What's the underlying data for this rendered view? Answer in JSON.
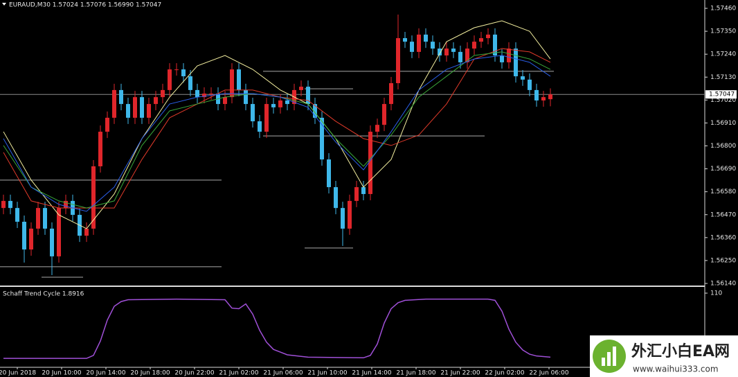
{
  "chart_data": {
    "type": "candlestick",
    "title": "EURAUD,M30  1.57024 1.57076 1.56990 1.57047",
    "up_color": "#e0262b",
    "down_color": "#3fb8ea",
    "grid": false,
    "ylim": [
      1.5613,
      1.575
    ],
    "yticks": [
      {
        "value": 1.5746,
        "label": "1.57460"
      },
      {
        "value": 1.5735,
        "label": "1.57350"
      },
      {
        "value": 1.5724,
        "label": "1.57240"
      },
      {
        "value": 1.5713,
        "label": "1.57130"
      },
      {
        "value": 1.5702,
        "label": "1.57020"
      },
      {
        "value": 1.5691,
        "label": "1.56910"
      },
      {
        "value": 1.568,
        "label": "1.56800"
      },
      {
        "value": 1.5669,
        "label": "1.56690"
      },
      {
        "value": 1.5658,
        "label": "1.56580"
      },
      {
        "value": 1.5647,
        "label": "1.56470"
      },
      {
        "value": 1.5636,
        "label": "1.56360"
      },
      {
        "value": 1.5625,
        "label": "1.56250"
      },
      {
        "value": 1.5614,
        "label": "1.56140"
      }
    ],
    "last_price": 1.57047,
    "time_labels": [
      "20 Jun 2018",
      "20 Jun 10:00",
      "20 Jun 14:00",
      "20 Jun 18:00",
      "20 Jun 22:00",
      "21 Jun 02:00",
      "21 Jun 06:00",
      "21 Jun 10:00",
      "21 Jun 14:00",
      "21 Jun 18:00",
      "21 Jun 22:00",
      "22 Jun 02:00",
      "22 Jun 06:00"
    ],
    "open": [
      1.56502,
      1.56536,
      1.56502,
      1.56436,
      1.56303,
      1.56403,
      1.56502,
      1.56403,
      1.5627,
      1.56502,
      1.56536,
      1.56469,
      1.56369,
      1.56403,
      1.56702,
      1.56868,
      1.56935,
      1.57068,
      1.57001,
      1.56935,
      1.57034,
      1.56935,
      1.57001,
      1.57034,
      1.57068,
      1.57167,
      1.57167,
      1.57134,
      1.57068,
      1.57034,
      1.57051,
      1.57051,
      1.57001,
      1.57034,
      1.57167,
      1.57068,
      1.57001,
      1.56918,
      1.56868,
      1.57001,
      1.56985,
      1.57018,
      1.57001,
      1.57068,
      1.57084,
      1.57001,
      1.56935,
      1.56735,
      1.56602,
      1.56502,
      1.56403,
      1.56536,
      1.56602,
      1.56569,
      1.56868,
      1.56901,
      1.57001,
      1.57101,
      1.57317,
      1.573,
      1.57251,
      1.57334,
      1.573,
      1.57267,
      1.57234,
      1.57267,
      1.57251,
      1.57201,
      1.57267,
      1.573,
      1.57317,
      1.57334,
      1.57234,
      1.57201,
      1.57267,
      1.57134,
      1.57118,
      1.57068,
      1.57018,
      1.57024
    ],
    "high": [
      1.56566,
      1.56566,
      1.56532,
      1.56466,
      1.56433,
      1.56532,
      1.56532,
      1.56433,
      1.56532,
      1.56566,
      1.56566,
      1.56499,
      1.56433,
      1.56732,
      1.56898,
      1.56965,
      1.57098,
      1.57098,
      1.57031,
      1.57064,
      1.57064,
      1.57031,
      1.57064,
      1.57098,
      1.57197,
      1.57197,
      1.57197,
      1.57164,
      1.57098,
      1.57081,
      1.57081,
      1.57081,
      1.57064,
      1.57197,
      1.57197,
      1.57098,
      1.57031,
      1.56948,
      1.57031,
      1.57031,
      1.57048,
      1.57048,
      1.57098,
      1.57114,
      1.57114,
      1.57031,
      1.56965,
      1.56765,
      1.56632,
      1.56532,
      1.56566,
      1.56632,
      1.56632,
      1.56898,
      1.56931,
      1.57031,
      1.57131,
      1.5743,
      1.57347,
      1.5733,
      1.57364,
      1.57364,
      1.5733,
      1.57297,
      1.57297,
      1.57297,
      1.57281,
      1.57297,
      1.5733,
      1.57347,
      1.57364,
      1.57364,
      1.57264,
      1.57297,
      1.57297,
      1.57164,
      1.57148,
      1.57098,
      1.57064,
      1.57076
    ],
    "low": [
      1.56472,
      1.56472,
      1.56406,
      1.5624,
      1.56273,
      1.56373,
      1.56373,
      1.5618,
      1.5624,
      1.56472,
      1.56439,
      1.56339,
      1.56339,
      1.56373,
      1.56672,
      1.56838,
      1.56905,
      1.56971,
      1.56905,
      1.56905,
      1.56905,
      1.56905,
      1.56971,
      1.57004,
      1.57038,
      1.57137,
      1.57104,
      1.57038,
      1.57004,
      1.57004,
      1.57021,
      1.56971,
      1.56971,
      1.57004,
      1.57038,
      1.56971,
      1.56888,
      1.56838,
      1.56838,
      1.56955,
      1.56955,
      1.56971,
      1.56971,
      1.57038,
      1.56971,
      1.56905,
      1.56705,
      1.56572,
      1.56472,
      1.5632,
      1.56373,
      1.56506,
      1.56539,
      1.56539,
      1.56838,
      1.56871,
      1.56971,
      1.57071,
      1.5727,
      1.57221,
      1.57221,
      1.5727,
      1.57237,
      1.57204,
      1.57204,
      1.57221,
      1.57171,
      1.57171,
      1.57237,
      1.5727,
      1.57287,
      1.57204,
      1.57171,
      1.57171,
      1.57104,
      1.57088,
      1.57038,
      1.56988,
      1.56988,
      1.5699
    ],
    "close": [
      1.56536,
      1.56502,
      1.56436,
      1.56303,
      1.56403,
      1.56502,
      1.56403,
      1.5627,
      1.56502,
      1.56536,
      1.56469,
      1.56369,
      1.56403,
      1.56702,
      1.56868,
      1.56935,
      1.57068,
      1.57001,
      1.56935,
      1.57034,
      1.56935,
      1.57001,
      1.57034,
      1.57068,
      1.57167,
      1.57167,
      1.57134,
      1.57068,
      1.57034,
      1.57051,
      1.57051,
      1.57001,
      1.57034,
      1.57167,
      1.57068,
      1.57001,
      1.56918,
      1.56868,
      1.57001,
      1.56985,
      1.57018,
      1.57001,
      1.57068,
      1.57084,
      1.57001,
      1.56935,
      1.56735,
      1.56602,
      1.56502,
      1.56403,
      1.56536,
      1.56602,
      1.56569,
      1.56868,
      1.56901,
      1.57001,
      1.57101,
      1.57317,
      1.573,
      1.57251,
      1.57334,
      1.573,
      1.57267,
      1.57234,
      1.57267,
      1.57251,
      1.57201,
      1.57267,
      1.573,
      1.57317,
      1.57334,
      1.57234,
      1.57201,
      1.57267,
      1.57134,
      1.57118,
      1.57068,
      1.57018,
      1.57034,
      1.57047
    ],
    "ma_x": [
      0,
      4,
      8,
      12,
      16,
      20,
      24,
      28,
      32,
      36,
      40,
      44,
      48,
      52,
      56,
      60,
      64,
      68,
      72,
      76,
      79
    ],
    "ma": [
      {
        "color": "#f5f0a0",
        "values": [
          1.56868,
          1.56636,
          1.56469,
          1.56403,
          1.56569,
          1.56835,
          1.57034,
          1.57184,
          1.57234,
          1.57167,
          1.57068,
          1.57001,
          1.56835,
          1.56602,
          1.56735,
          1.57068,
          1.573,
          1.57367,
          1.574,
          1.5735,
          1.57217
        ]
      },
      {
        "color": "#e03a2a",
        "values": [
          1.56769,
          1.56536,
          1.56502,
          1.56502,
          1.56502,
          1.56735,
          1.56935,
          1.57001,
          1.57068,
          1.57068,
          1.57034,
          1.57018,
          1.56918,
          1.56835,
          1.56802,
          1.56852,
          1.57001,
          1.57217,
          1.57267,
          1.57251,
          1.57201
        ]
      },
      {
        "color": "#3aa83a",
        "values": [
          1.56802,
          1.56602,
          1.56536,
          1.56502,
          1.56536,
          1.56802,
          1.56968,
          1.57001,
          1.57034,
          1.57051,
          1.57034,
          1.57001,
          1.56835,
          1.56702,
          1.56852,
          1.57034,
          1.57134,
          1.57234,
          1.57251,
          1.57217,
          1.57167
        ]
      },
      {
        "color": "#2a5ee8",
        "values": [
          1.56835,
          1.56602,
          1.56519,
          1.56486,
          1.56602,
          1.56835,
          1.57001,
          1.57034,
          1.57051,
          1.57051,
          1.57034,
          1.56985,
          1.56818,
          1.56685,
          1.56868,
          1.57068,
          1.57167,
          1.57217,
          1.57234,
          1.57201,
          1.57134
        ]
      }
    ],
    "levels": [
      {
        "price": 1.56636,
        "from": 0,
        "to": 31
      },
      {
        "price": 1.5622,
        "from": 0,
        "to": 31
      },
      {
        "price": 1.5617,
        "from": 6,
        "to": 11
      },
      {
        "price": 1.57158,
        "from": 38,
        "to": 79
      },
      {
        "price": 1.57074,
        "from": 44,
        "to": 50
      },
      {
        "price": 1.56848,
        "from": 38,
        "to": 69
      },
      {
        "price": 1.5631,
        "from": 44,
        "to": 50
      }
    ],
    "indicator": {
      "title": "Schaff Trend Cycle 1.8916",
      "color": "#a050d8",
      "ylim": [
        0,
        110
      ],
      "yticks": [
        110
      ],
      "x": [
        0,
        12,
        13,
        14,
        15,
        16,
        17,
        18,
        25,
        32,
        33,
        34,
        35,
        36,
        37,
        38,
        39,
        41,
        44,
        52,
        53,
        54,
        55,
        56,
        57,
        58,
        61,
        70,
        71,
        72,
        73,
        74,
        75,
        76,
        77,
        79
      ],
      "values": [
        1,
        1,
        6,
        30,
        65,
        88,
        96,
        99,
        100,
        99,
        85,
        84,
        92,
        75,
        48,
        28,
        16,
        7,
        3,
        2,
        6,
        25,
        60,
        84,
        94,
        98,
        100,
        100,
        98,
        80,
        50,
        28,
        15,
        8,
        5,
        3
      ]
    }
  },
  "watermark": {
    "title": "外汇小白EA网",
    "url": "www.waihui333.com"
  }
}
